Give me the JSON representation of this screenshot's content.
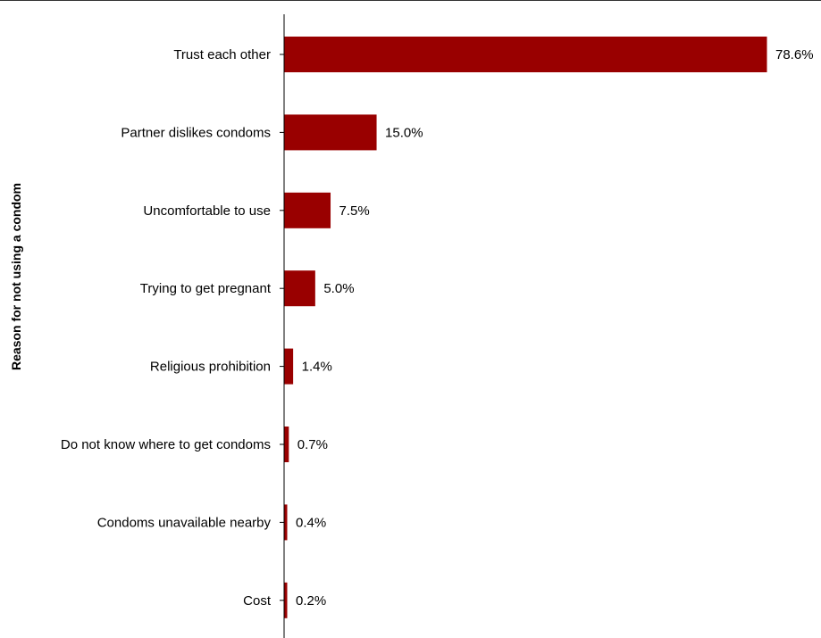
{
  "chart_data": {
    "type": "bar",
    "orientation": "horizontal",
    "title": "",
    "xlabel": "",
    "ylabel": "Reason for not using a condom",
    "categories": [
      "Trust each other",
      "Partner dislikes condoms",
      "Uncomfortable to use",
      "Trying to get pregnant",
      "Religious prohibition",
      "Do not know where to get condoms",
      "Condoms unavailable nearby",
      "Cost"
    ],
    "values": [
      78.6,
      15.0,
      7.5,
      5.0,
      1.4,
      0.7,
      0.4,
      0.2
    ],
    "value_labels": [
      "78.6%",
      "15.0%",
      "7.5%",
      "5.0%",
      "1.4%",
      "0.7%",
      "0.4%",
      "0.2%"
    ],
    "xlim": [
      0,
      80
    ],
    "grid": false,
    "legend": "none",
    "bar_color": "#990000"
  }
}
